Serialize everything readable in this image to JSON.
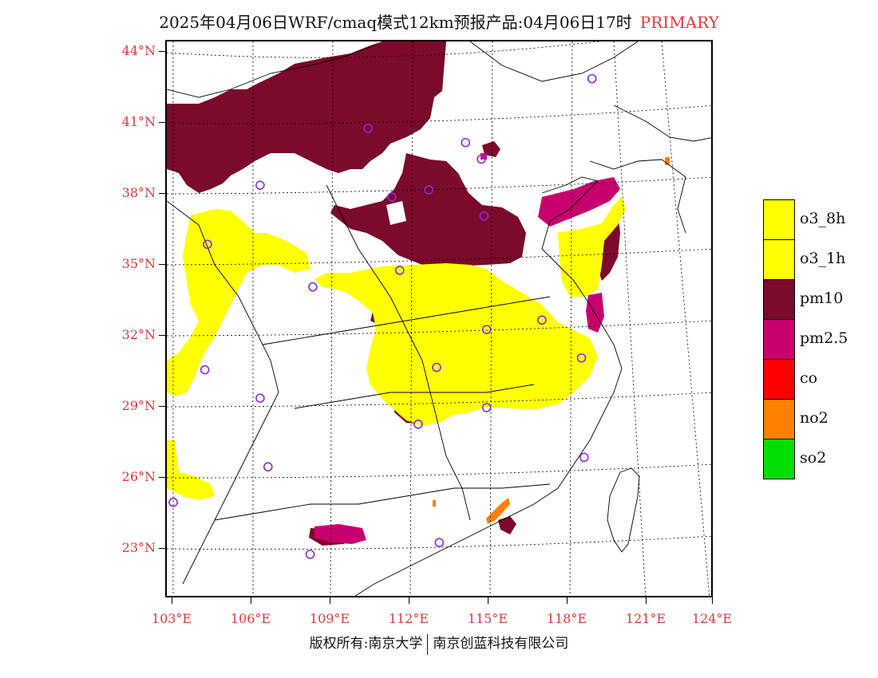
{
  "title": {
    "main": "2025年04月06日WRF/cmaq模式12km预报产品:04月06日17时",
    "tag": "PRIMARY"
  },
  "map": {
    "lat_labels": [
      "44°N",
      "41°N",
      "38°N",
      "35°N",
      "32°N",
      "29°N",
      "26°N",
      "23°N"
    ],
    "lon_labels": [
      "103°E",
      "106°E",
      "109°E",
      "112°E",
      "115°E",
      "118°E",
      "121°E",
      "124°E"
    ],
    "lat_range": [
      21.2,
      44.5
    ],
    "lon_range": [
      102.8,
      124
    ],
    "colors": {
      "o3": "#ffff00",
      "pm10": "#7b0a2b",
      "pm25": "#c8006e",
      "no2": "#ff7f00",
      "station": "#8a2be2",
      "grid_label": "#e8353b"
    },
    "stations": [
      {
        "lon": 118.9,
        "lat": 42.9
      },
      {
        "lon": 110.4,
        "lat": 40.8
      },
      {
        "lon": 114.1,
        "lat": 40.2
      },
      {
        "lon": 114.7,
        "lat": 39.5
      },
      {
        "lon": 106.3,
        "lat": 38.4
      },
      {
        "lon": 111.3,
        "lat": 37.9
      },
      {
        "lon": 112.7,
        "lat": 38.2
      },
      {
        "lon": 114.8,
        "lat": 37.1
      },
      {
        "lon": 104.3,
        "lat": 35.9
      },
      {
        "lon": 111.6,
        "lat": 34.8
      },
      {
        "lon": 108.3,
        "lat": 34.1
      },
      {
        "lon": 117.0,
        "lat": 32.7
      },
      {
        "lon": 114.9,
        "lat": 32.3
      },
      {
        "lon": 104.2,
        "lat": 30.6
      },
      {
        "lon": 113.0,
        "lat": 30.7
      },
      {
        "lon": 118.5,
        "lat": 31.1
      },
      {
        "lon": 106.3,
        "lat": 29.4
      },
      {
        "lon": 114.9,
        "lat": 29.0
      },
      {
        "lon": 112.3,
        "lat": 28.3
      },
      {
        "lon": 106.6,
        "lat": 26.5
      },
      {
        "lon": 118.6,
        "lat": 26.9
      },
      {
        "lon": 103.0,
        "lat": 25.0
      },
      {
        "lon": 108.2,
        "lat": 22.8
      },
      {
        "lon": 113.1,
        "lat": 23.3
      }
    ]
  },
  "legend": [
    {
      "label": "o3_8h",
      "color": "#ffff00"
    },
    {
      "label": "o3_1h",
      "color": "#ffff00"
    },
    {
      "label": "pm10",
      "color": "#7b0a2b"
    },
    {
      "label": "pm2.5",
      "color": "#c8006e"
    },
    {
      "label": "co",
      "color": "#ff0000"
    },
    {
      "label": "no2",
      "color": "#ff7f00"
    },
    {
      "label": "so2",
      "color": "#00dd00"
    }
  ],
  "footer": {
    "left": "版权所有:南京大学",
    "right": "南京创蓝科技有限公司"
  }
}
